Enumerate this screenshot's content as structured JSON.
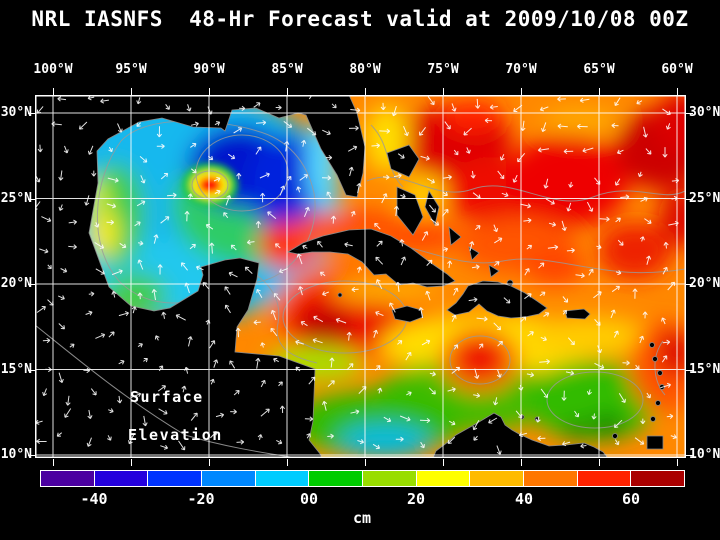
{
  "title": "NRL IASNFS  48-Hr Forecast valid at 2009/10/08 00Z",
  "map": {
    "lon_labels": [
      "100°W",
      "95°W",
      "90°W",
      "85°W",
      "80°W",
      "75°W",
      "70°W",
      "65°W",
      "60°W"
    ],
    "lat_labels_left": [
      "30°N",
      "25°N",
      "20°N",
      "15°N",
      "10°N"
    ],
    "lat_labels_right": [
      "30°N",
      "25°N",
      "20°N",
      "15°N",
      "10°N"
    ],
    "overlay_labels": [
      "Surface",
      "Elevation"
    ],
    "grid_color": "#ffffff",
    "land_color": "#000000",
    "vector_color": "#ffffff",
    "contour_color": "#9a9a9a"
  },
  "colorbar": {
    "units": "cm",
    "tick_labels": [
      "-40",
      "-20",
      "00",
      "20",
      "40",
      "60"
    ],
    "range_cm": [
      -50,
      70
    ],
    "segments": [
      {
        "from": -50,
        "to": -40,
        "color": "#4b00a0"
      },
      {
        "from": -40,
        "to": -30,
        "color": "#2400dd"
      },
      {
        "from": -30,
        "to": -20,
        "color": "#0033ff"
      },
      {
        "from": -20,
        "to": -10,
        "color": "#0088ff"
      },
      {
        "from": -10,
        "to": 0,
        "color": "#00ccff"
      },
      {
        "from": 0,
        "to": 10,
        "color": "#00cc00"
      },
      {
        "from": 10,
        "to": 20,
        "color": "#99dd00"
      },
      {
        "from": 20,
        "to": 30,
        "color": "#ffff00"
      },
      {
        "from": 30,
        "to": 40,
        "color": "#ffbb00"
      },
      {
        "from": 40,
        "to": 50,
        "color": "#ff7700"
      },
      {
        "from": 50,
        "to": 60,
        "color": "#ff2200"
      },
      {
        "from": 60,
        "to": 70,
        "color": "#aa0000"
      }
    ]
  }
}
